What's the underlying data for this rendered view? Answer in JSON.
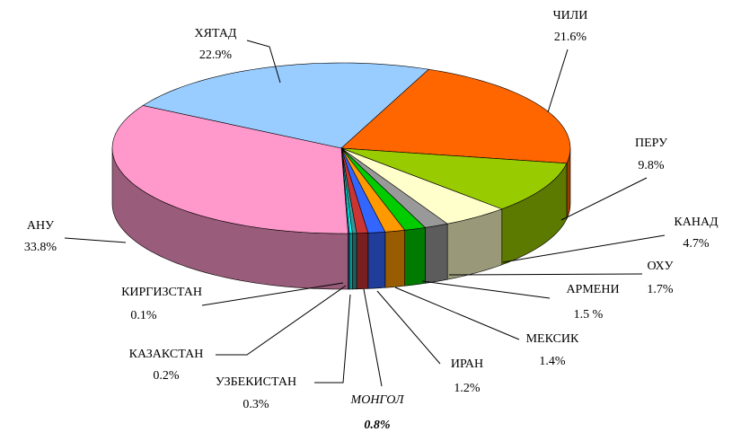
{
  "chart_data": {
    "type": "pie3d",
    "categories": [
      "ХЯТАД",
      "ЧИЛИ",
      "ПЕРУ",
      "КАНАД",
      "ОХУ",
      "АРМЕНИ",
      "МЕКСИК",
      "ИРАН",
      "МОНГОЛ",
      "УЗБЕКИСТАН",
      "КАЗАКСТАН",
      "КИРГИЗСТАН",
      "АНУ"
    ],
    "values": [
      22.9,
      21.6,
      9.8,
      4.7,
      1.7,
      1.5,
      1.4,
      1.2,
      0.8,
      0.3,
      0.2,
      0.1,
      33.8
    ],
    "value_labels": [
      "22.9%",
      "21.6%",
      "9.8%",
      "4.7%",
      "1.7%",
      "1.5 %",
      "1.4%",
      "1.2%",
      "0.8%",
      "0.3%",
      "0.2%",
      "0.1%",
      "33.8%"
    ],
    "colors": [
      "#99ccff",
      "#ff6600",
      "#99cc00",
      "#ffffcc",
      "#999999",
      "#00cc00",
      "#ff9900",
      "#3366ff",
      "#cc3333",
      "#339999",
      "#00ffff",
      "#666699",
      "#ff99cc"
    ]
  }
}
